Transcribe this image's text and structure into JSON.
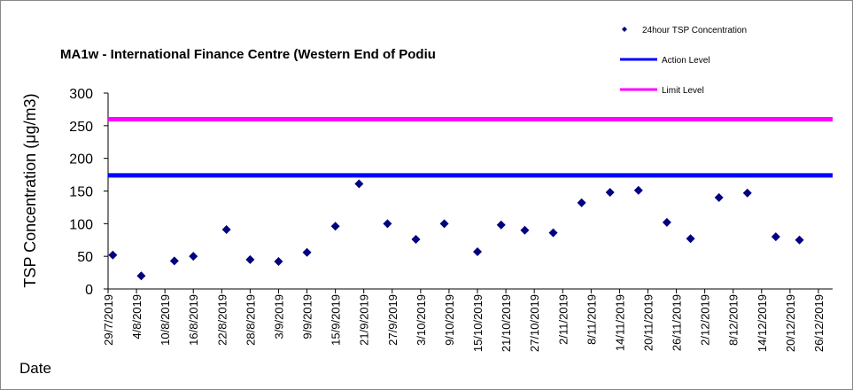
{
  "chart_data": {
    "type": "scatter",
    "title": "MA1w - International Finance Centre (Western End of Podiu",
    "y_label": "TSP Concentration (μg/m3)",
    "x_label": "Date",
    "series": [
      {
        "name": "24hour TSP Concentration",
        "color": "#000080",
        "x": [
          "30/7/2019",
          "5/8/2019",
          "12/8/2019",
          "16/8/2019",
          "23/8/2019",
          "28/8/2019",
          "3/9/2019",
          "9/9/2019",
          "15/9/2019",
          "20/9/2019",
          "26/9/2019",
          "2/10/2019",
          "8/10/2019",
          "15/10/2019",
          "20/10/2019",
          "25/10/2019",
          "31/10/2019",
          "6/11/2019",
          "12/11/2019",
          "18/11/2019",
          "24/11/2019",
          "29/11/2019",
          "5/12/2019",
          "11/12/2019",
          "17/12/2019",
          "22/12/2019"
        ],
        "values": [
          52,
          20,
          43,
          50,
          91,
          45,
          42,
          56,
          96,
          161,
          100,
          76,
          100,
          57,
          98,
          90,
          86,
          132,
          148,
          151,
          102,
          77,
          140,
          147,
          80,
          75
        ]
      }
    ],
    "reference_lines": [
      {
        "name": "Action Level",
        "color": "#0000ff",
        "value": 174
      },
      {
        "name": "Limit Level",
        "color": "#ff00ff",
        "value": 260
      }
    ],
    "xlim": [
      "29/7/2019",
      "29/12/2019"
    ],
    "xticks": [
      "29/7/2019",
      "4/8/2019",
      "10/8/2019",
      "16/8/2019",
      "22/8/2019",
      "28/8/2019",
      "3/9/2019",
      "9/9/2019",
      "15/9/2019",
      "21/9/2019",
      "27/9/2019",
      "3/10/2019",
      "9/10/2019",
      "15/10/2019",
      "21/10/2019",
      "27/10/2019",
      "2/11/2019",
      "8/11/2019",
      "14/11/2019",
      "20/11/2019",
      "26/11/2019",
      "2/12/2019",
      "8/12/2019",
      "14/12/2019",
      "20/12/2019",
      "26/12/2019"
    ],
    "ylim": [
      0,
      300
    ],
    "yticks": [
      0,
      50,
      100,
      150,
      200,
      250,
      300
    ],
    "legend": "top-right"
  }
}
